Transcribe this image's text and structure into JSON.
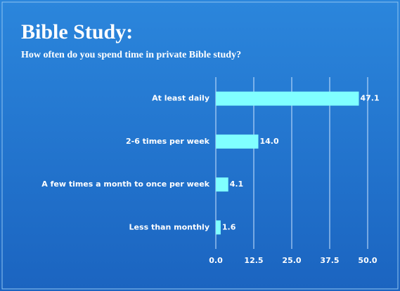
{
  "chart_data": {
    "type": "hbar",
    "title": "Bible Study:",
    "subtitle": "How often do you spend time in private Bible study?",
    "categories": [
      "At least daily",
      "2-6 times per week",
      "A few times a month to once per week",
      "Less than monthly"
    ],
    "values": [
      47.1,
      14.0,
      4.1,
      1.6
    ],
    "value_labels": [
      "47.1",
      "14.0",
      "4.1",
      "1.6"
    ],
    "color": "#80ffff",
    "xlim": [
      0,
      50
    ],
    "xticks": [
      {
        "value": 0,
        "label": "0.0"
      },
      12.5,
      {
        "value": 25,
        "label": "25.0"
      },
      37.5,
      {
        "value": 50,
        "label": "50.0"
      }
    ],
    "grid": true
  }
}
